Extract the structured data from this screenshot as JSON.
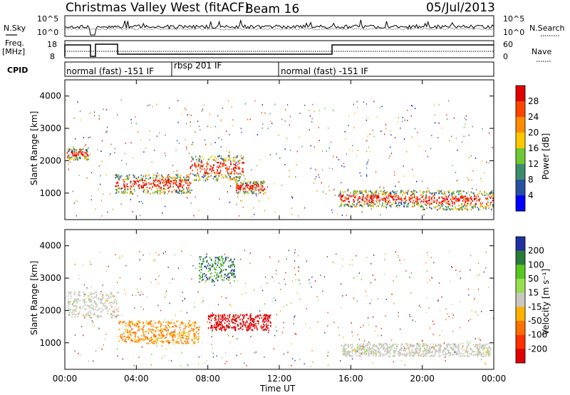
{
  "header": {
    "site": "Christmas Valley West (fitACF)",
    "beam": "Beam 16",
    "date": "05/Jul/2013"
  },
  "left_labels": {
    "nsky": "N.Sky",
    "freq_line1": "Freq.",
    "freq_line2": "[MHz]",
    "cpid": "CPID"
  },
  "right_labels": {
    "nsearch": "N.Search",
    "nave": "Nave"
  },
  "noise_panel": {
    "left_ticks": [
      "10^5",
      "10^0"
    ],
    "right_ticks": [
      "10^5",
      "10^0"
    ]
  },
  "freq_panel": {
    "left_ticks": [
      "18",
      "8"
    ],
    "right_ticks": [
      "60",
      "0"
    ]
  },
  "cpid_panel": {
    "segments": [
      {
        "label": "normal (fast) -151 IF",
        "start_hour": 0.0
      },
      {
        "label": "rbsp 201 IF",
        "start_hour": 6.0
      },
      {
        "label": "normal (fast) -151 IF",
        "start_hour": 12.0
      }
    ]
  },
  "power_colorbar": {
    "title": "Power [dB]",
    "ticks": [
      "28",
      "24",
      "20",
      "16",
      "12",
      "8",
      "4"
    ],
    "colors": [
      "#e00000",
      "#ff4400",
      "#ff8c00",
      "#ffc800",
      "#6ec832",
      "#3c8c6e",
      "#2850a0",
      "#0000ff"
    ]
  },
  "velocity_colorbar": {
    "title": "Velocity [m s⁻¹]",
    "ticks": [
      "200",
      "100",
      "50",
      "15",
      "-15",
      "-50",
      "-100",
      "-200"
    ],
    "colors": [
      "#2030a0",
      "#2a7a3a",
      "#58c820",
      "#96e050",
      "#c8c8c0",
      "#ffb000",
      "#ff7000",
      "#ff3000",
      "#e00000"
    ]
  },
  "chart_data": [
    {
      "type": "heatmap",
      "title": "",
      "xlabel": "Time UT",
      "ylabel": "Slant Range [km]",
      "x_ticks": [
        "00:00",
        "04:00",
        "08:00",
        "12:00",
        "16:00",
        "20:00",
        "00:00"
      ],
      "y_ticks": [
        "1000",
        "2000",
        "3000",
        "4000"
      ],
      "xlim": [
        0,
        24
      ],
      "ylim": [
        180,
        4500
      ],
      "quantity": "Power [dB]",
      "regions": [
        {
          "t": [
            0.1,
            1.3
          ],
          "range": [
            2050,
            2400
          ],
          "level": "16-24 dB"
        },
        {
          "t": [
            2.8,
            7.0
          ],
          "range": [
            1000,
            1600
          ],
          "level": "20-28 dB"
        },
        {
          "t": [
            7.0,
            10.0
          ],
          "range": [
            1400,
            2200
          ],
          "level": "20-28 dB"
        },
        {
          "t": [
            9.5,
            11.2
          ],
          "range": [
            1000,
            1400
          ],
          "level": "24-28 dB"
        },
        {
          "t": [
            15.3,
            20.0
          ],
          "range": [
            600,
            1100
          ],
          "level": "24-28 dB"
        },
        {
          "t": [
            20.0,
            24.0
          ],
          "range": [
            500,
            1100
          ],
          "level": "24-28 dB"
        }
      ]
    },
    {
      "type": "heatmap",
      "title": "",
      "xlabel": "Time UT",
      "ylabel": "Slant Range [km]",
      "x_ticks": [
        "00:00",
        "04:00",
        "08:00",
        "12:00",
        "16:00",
        "20:00",
        "00:00"
      ],
      "y_ticks": [
        "1000",
        "2000",
        "3000",
        "4000"
      ],
      "xlim": [
        0,
        24
      ],
      "ylim": [
        180,
        4500
      ],
      "quantity": "Velocity [m s⁻¹]",
      "regions": [
        {
          "t": [
            0.1,
            3.0
          ],
          "range": [
            1800,
            2600
          ],
          "level": "-15 to 15"
        },
        {
          "t": [
            3.0,
            7.5
          ],
          "range": [
            1000,
            1700
          ],
          "level": "-50 to -100"
        },
        {
          "t": [
            8.0,
            11.5
          ],
          "range": [
            1400,
            1900
          ],
          "level": "-200"
        },
        {
          "t": [
            15.5,
            23.8
          ],
          "range": [
            600,
            1000
          ],
          "level": "-15 to 15"
        },
        {
          "t": [
            7.5,
            9.5
          ],
          "range": [
            2900,
            3700
          ],
          "level": "50 to 200"
        }
      ]
    }
  ],
  "time_axis_label": "Time UT"
}
